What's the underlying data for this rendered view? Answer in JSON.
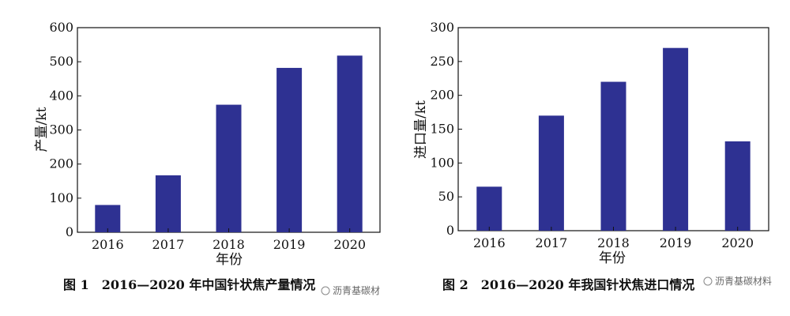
{
  "chart_data": [
    {
      "type": "bar",
      "categories": [
        "2016",
        "2017",
        "2018",
        "2019",
        "2020"
      ],
      "values": [
        80,
        167,
        374,
        482,
        518
      ],
      "xlabel": "年份",
      "ylabel": "产量/kt",
      "ylim": [
        0,
        600
      ],
      "yticks": [
        0,
        100,
        200,
        300,
        400,
        500,
        600
      ],
      "bar_color": "#2e3192",
      "caption": "图 1　2016—2020 年中国针状焦产量情况"
    },
    {
      "type": "bar",
      "categories": [
        "2016",
        "2017",
        "2018",
        "2019",
        "2020"
      ],
      "values": [
        65,
        170,
        220,
        270,
        132
      ],
      "xlabel": "年份",
      "ylabel": "进口量/kt",
      "ylim": [
        0,
        300
      ],
      "yticks": [
        0,
        50,
        100,
        150,
        200,
        250,
        300
      ],
      "bar_color": "#2e3192",
      "caption": "图 2　2016—2020 年我国针状焦进口情况"
    }
  ],
  "watermarks": [
    "沥青基碳材",
    "沥青基碳材料"
  ]
}
